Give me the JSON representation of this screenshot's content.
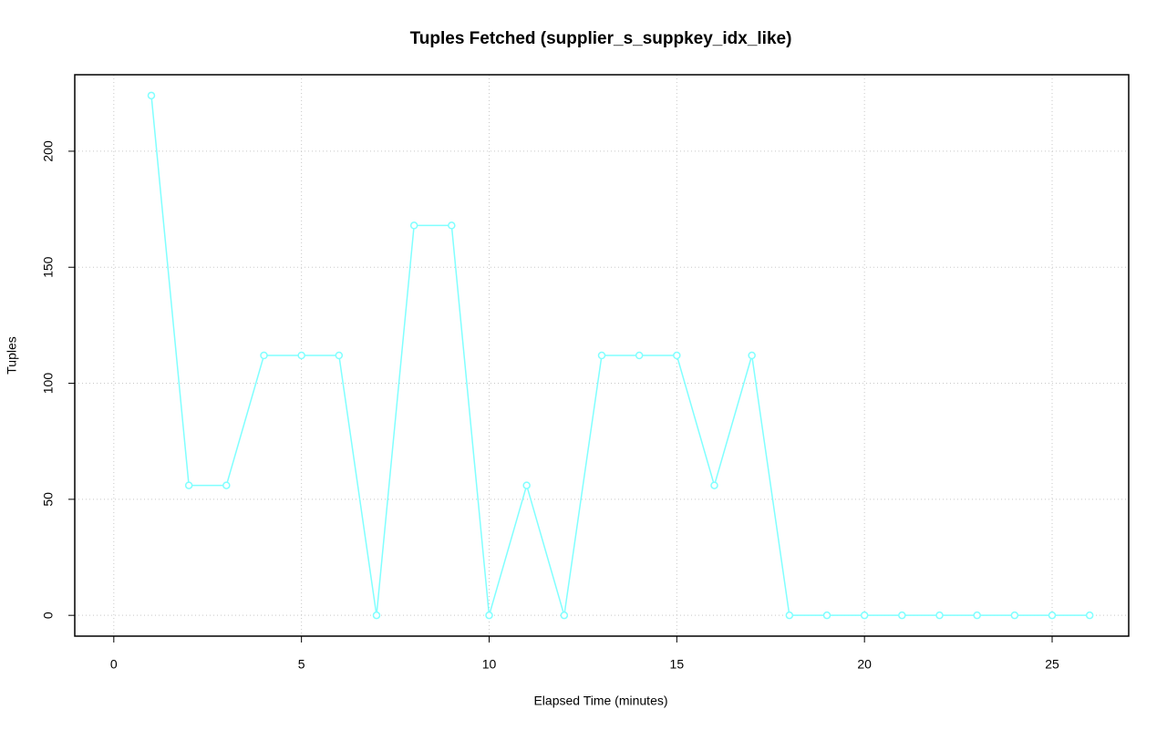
{
  "chart_data": {
    "type": "line",
    "title": "Tuples Fetched (supplier_s_suppkey_idx_like)",
    "x_label": "Elapsed Time (minutes)",
    "y_label": "Tuples",
    "x": [
      1,
      2,
      3,
      4,
      5,
      6,
      7,
      8,
      9,
      10,
      11,
      12,
      13,
      14,
      15,
      16,
      17,
      18,
      19,
      20,
      21,
      22,
      23,
      24,
      25,
      26
    ],
    "series": [
      {
        "name": "supplier_s_suppkey_idx_like",
        "color": "#80ffff",
        "values": [
          224,
          56,
          56,
          112,
          112,
          112,
          0,
          168,
          168,
          0,
          56,
          0,
          112,
          112,
          112,
          56,
          112,
          0,
          0,
          0,
          0,
          0,
          0,
          0,
          0,
          0
        ]
      }
    ],
    "xlim": [
      -1.04,
      27.04
    ],
    "xticks": [
      0,
      5,
      10,
      15,
      20,
      25
    ],
    "ylim": [
      -8.96,
      232.96
    ],
    "yticks": [
      0,
      50,
      100,
      150,
      200
    ],
    "grid": true
  }
}
